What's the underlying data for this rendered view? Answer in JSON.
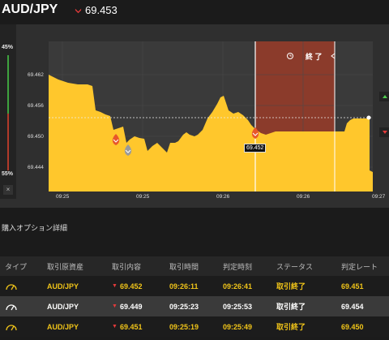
{
  "header": {
    "pair": "AUD/JPY",
    "rate": "69.453",
    "direction": "down"
  },
  "gauge": {
    "top_pct": "45%",
    "bottom_pct": "55%",
    "close": "×"
  },
  "chart_data": {
    "type": "area",
    "y_ticks": [
      "69.462",
      "69.456",
      "69.450",
      "69.444"
    ],
    "x_ticks": [
      "09:25",
      "09:25",
      "09:26",
      "09:26",
      "09:27"
    ],
    "current_rate": 69.453,
    "expiry_label": "終 了",
    "tooltip": "69.452",
    "colors": {
      "area": "#ffc72c",
      "expired_zone": "#8b3b2b",
      "background": "#2f2f2f"
    }
  },
  "section": {
    "title": "購入オプション詳細"
  },
  "table": {
    "headers": [
      "タイプ",
      "取引原資産",
      "取引内容",
      "取引時間",
      "判定時刻",
      "ステータス",
      "判定レート"
    ],
    "rows": [
      {
        "type_icon": "gauge-icon",
        "asset": "AUD/JPY",
        "content": "69.452",
        "trade_time": "09:26:11",
        "judge_time": "09:26:41",
        "status": "取引終了",
        "judge_rate": "69.451"
      },
      {
        "type_icon": "gauge-icon",
        "asset": "AUD/JPY",
        "content": "69.449",
        "trade_time": "09:25:23",
        "judge_time": "09:25:53",
        "status": "取引終了",
        "judge_rate": "69.454"
      },
      {
        "type_icon": "gauge-icon",
        "asset": "AUD/JPY",
        "content": "69.451",
        "trade_time": "09:25:19",
        "judge_time": "09:25:49",
        "status": "取引終了",
        "judge_rate": "69.450"
      }
    ]
  }
}
